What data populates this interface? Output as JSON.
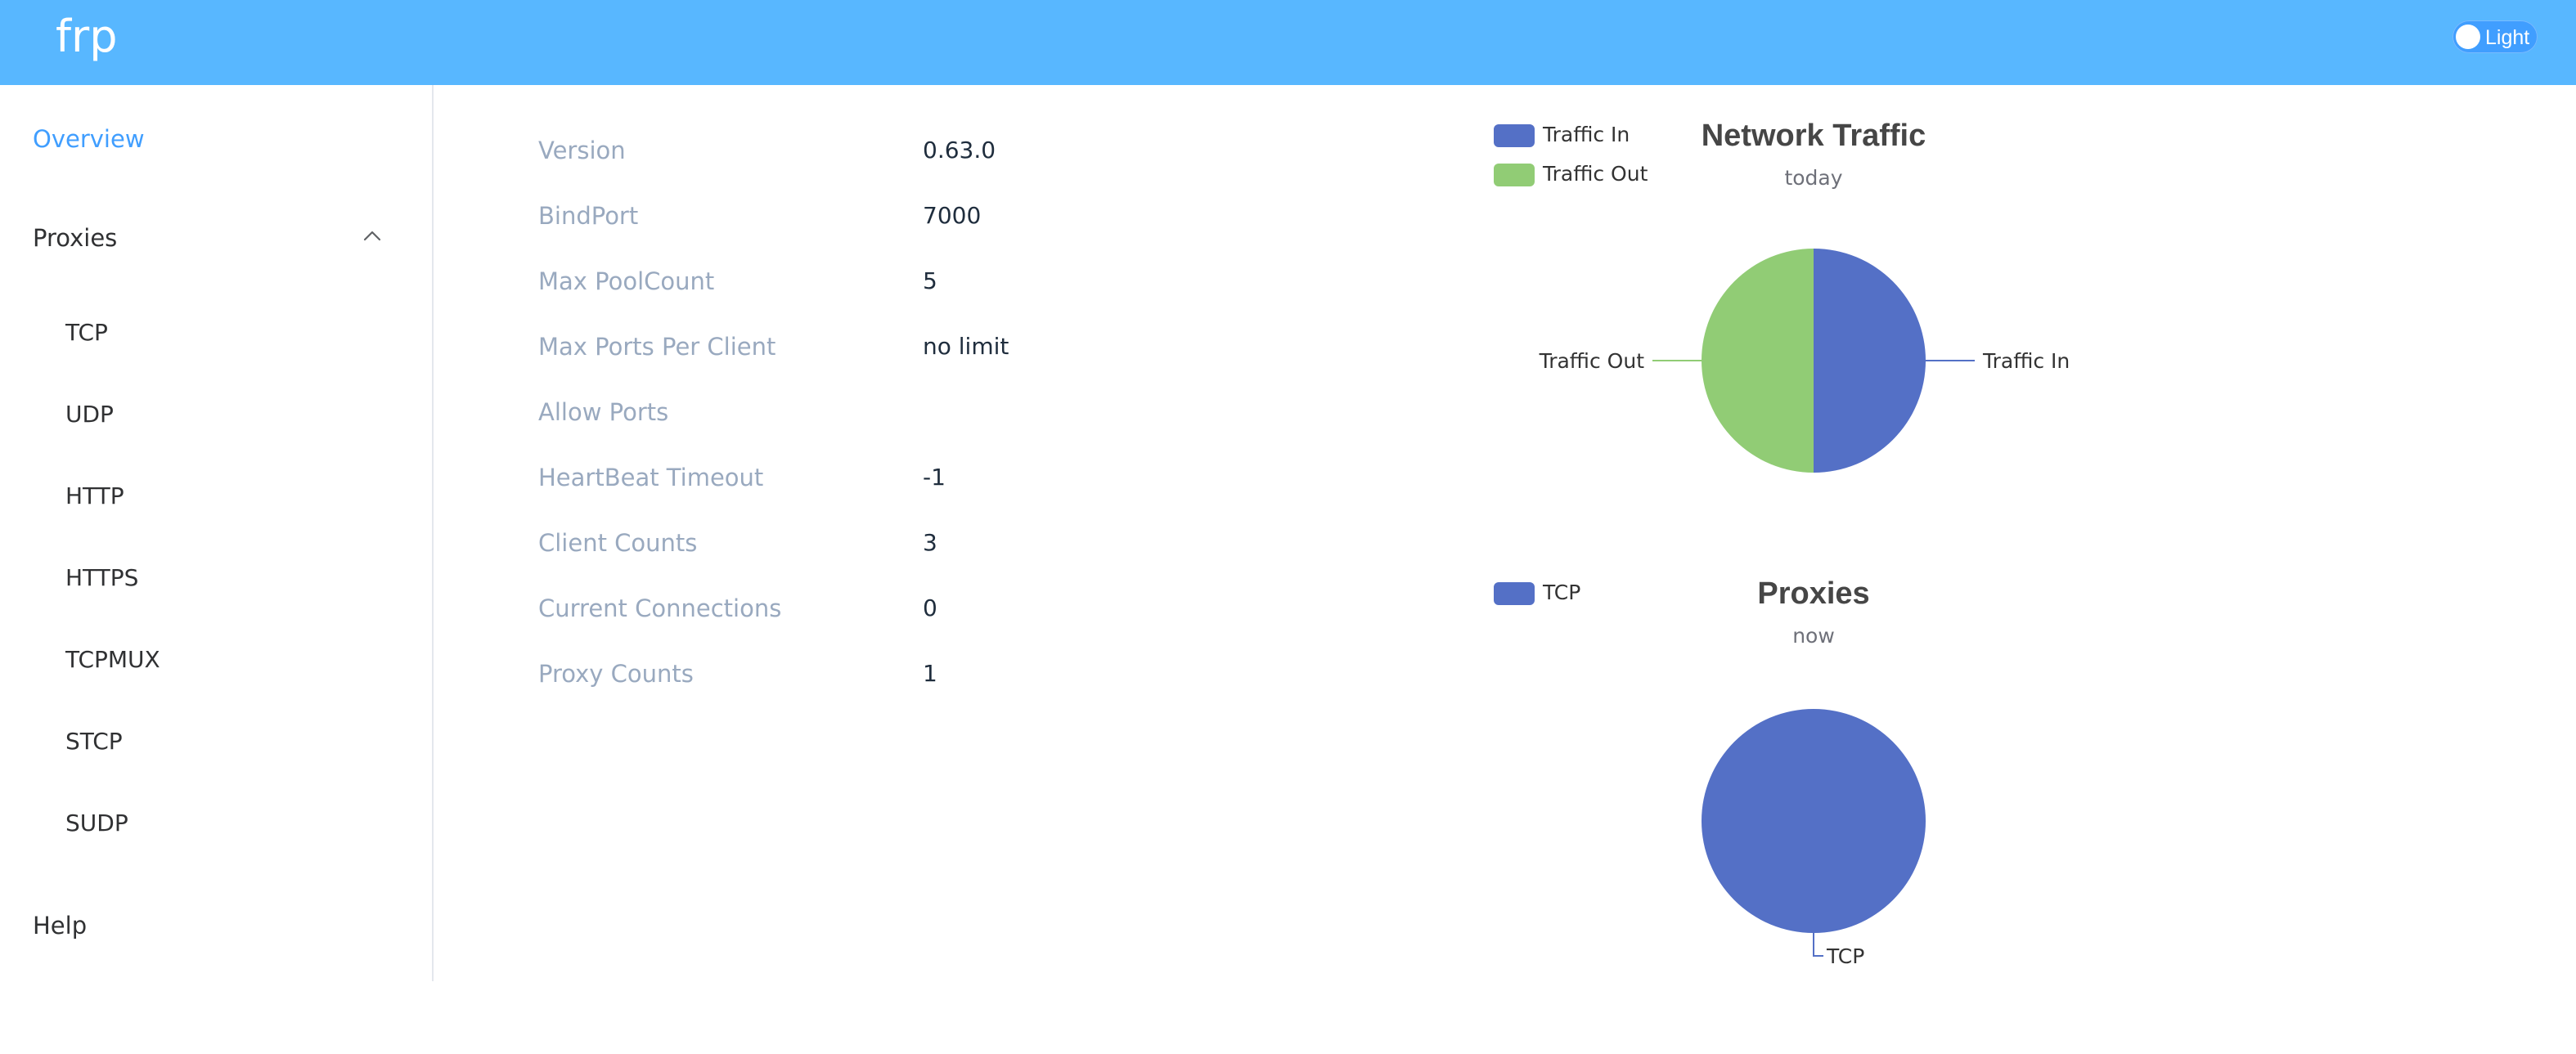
{
  "header": {
    "brand": "frp",
    "theme_toggle_label": "Light",
    "colors": {
      "header_bg": "#58b7ff"
    }
  },
  "sidebar": {
    "overview": "Overview",
    "proxies": "Proxies",
    "proxies_icon": "chevron-up-icon",
    "proxy_types": [
      "TCP",
      "UDP",
      "HTTP",
      "HTTPS",
      "TCPMUX",
      "STCP",
      "SUDP"
    ],
    "help": "Help",
    "active_color": "#409eff"
  },
  "server_info": [
    {
      "label": "Version",
      "value": "0.63.0"
    },
    {
      "label": "BindPort",
      "value": "7000"
    },
    {
      "label": "Max PoolCount",
      "value": "5"
    },
    {
      "label": "Max Ports Per Client",
      "value": "no limit"
    },
    {
      "label": "Allow Ports",
      "value": ""
    },
    {
      "label": "HeartBeat Timeout",
      "value": "-1"
    },
    {
      "label": "Client Counts",
      "value": "3"
    },
    {
      "label": "Current Connections",
      "value": "0"
    },
    {
      "label": "Proxy Counts",
      "value": "1"
    }
  ],
  "chart_data": [
    {
      "type": "pie",
      "title": "Network Traffic",
      "subtitle": "today",
      "legend": [
        "Traffic In",
        "Traffic Out"
      ],
      "legend_position": "top-left",
      "categories": [
        "Traffic In",
        "Traffic Out"
      ],
      "values": [
        50,
        50
      ],
      "colors": [
        "#5470c6",
        "#91cc75"
      ]
    },
    {
      "type": "pie",
      "title": "Proxies",
      "subtitle": "now",
      "legend": [
        "TCP"
      ],
      "legend_position": "top-left",
      "categories": [
        "TCP"
      ],
      "values": [
        1
      ],
      "colors": [
        "#5470c6"
      ]
    }
  ]
}
